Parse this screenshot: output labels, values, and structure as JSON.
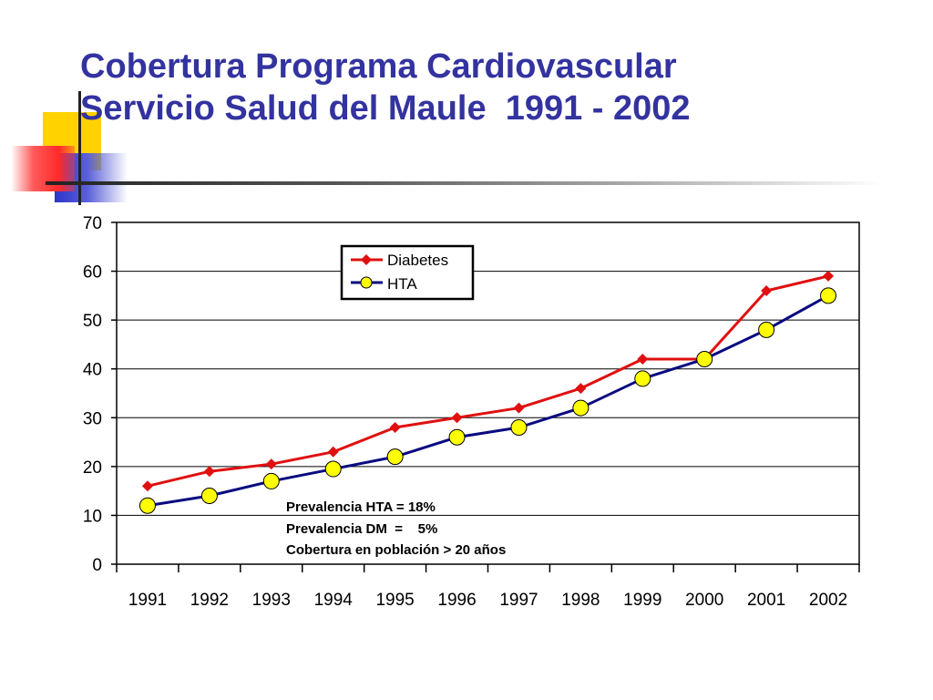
{
  "title": {
    "line1": "Cobertura Programa Cardiovascular",
    "line2": "Servicio Salud del Maule  1991 - 2002"
  },
  "colors": {
    "title": "#3333a0",
    "diabetes": "#e01010",
    "hta_line": "#0a0a80",
    "hta_marker": "#ffff00"
  },
  "chart_data": {
    "type": "line",
    "categories": [
      "1991",
      "1992",
      "1993",
      "1994",
      "1995",
      "1996",
      "1997",
      "1998",
      "1999",
      "2000",
      "2001",
      "2002"
    ],
    "series": [
      {
        "name": "Diabetes",
        "marker": "diamond",
        "values": [
          16,
          19,
          20.5,
          23,
          28,
          30,
          32,
          36,
          42,
          42,
          56,
          59
        ]
      },
      {
        "name": "HTA",
        "marker": "circle",
        "values": [
          12,
          14,
          17,
          19.5,
          22,
          26,
          28,
          32,
          38,
          42,
          48,
          55
        ]
      }
    ],
    "ylim": [
      0,
      70
    ],
    "yticks": [
      0,
      10,
      20,
      30,
      40,
      50,
      60,
      70
    ],
    "grid": true,
    "legend_position": "top-center",
    "annotations": [
      "Prevalencia HTA = 18%",
      "Prevalencia DM  =    5%",
      "Cobertura en población > 20 años"
    ]
  }
}
